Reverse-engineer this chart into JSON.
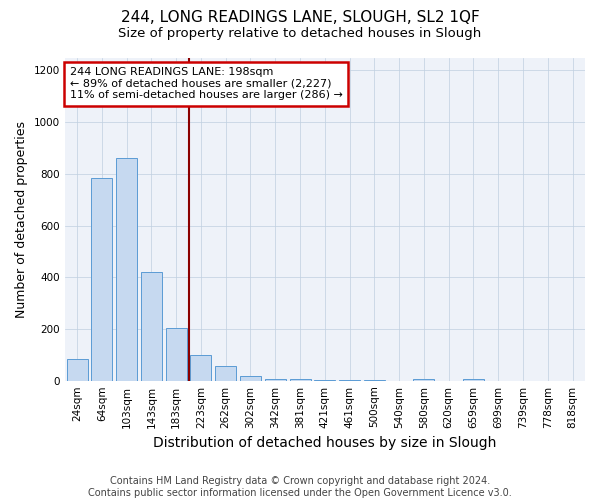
{
  "title": "244, LONG READINGS LANE, SLOUGH, SL2 1QF",
  "subtitle": "Size of property relative to detached houses in Slough",
  "xlabel": "Distribution of detached houses by size in Slough",
  "ylabel": "Number of detached properties",
  "categories": [
    "24sqm",
    "64sqm",
    "103sqm",
    "143sqm",
    "183sqm",
    "223sqm",
    "262sqm",
    "302sqm",
    "342sqm",
    "381sqm",
    "421sqm",
    "461sqm",
    "500sqm",
    "540sqm",
    "580sqm",
    "620sqm",
    "659sqm",
    "699sqm",
    "739sqm",
    "778sqm",
    "818sqm"
  ],
  "values": [
    85,
    785,
    860,
    420,
    205,
    100,
    55,
    20,
    8,
    5,
    3,
    2,
    1,
    0,
    8,
    0,
    8,
    0,
    0,
    0,
    0
  ],
  "bar_color": "#c6d9f0",
  "bar_edge_color": "#5b9bd5",
  "red_line_x": 4,
  "annotation_line1": "244 LONG READINGS LANE: 198sqm",
  "annotation_line2": "← 89% of detached houses are smaller (2,227)",
  "annotation_line3": "11% of semi-detached houses are larger (286) →",
  "annotation_box_color": "#ffffff",
  "annotation_box_edge": "#cc0000",
  "ylim": [
    0,
    1250
  ],
  "yticks": [
    0,
    200,
    400,
    600,
    800,
    1000,
    1200
  ],
  "footer": "Contains HM Land Registry data © Crown copyright and database right 2024.\nContains public sector information licensed under the Open Government Licence v3.0.",
  "title_fontsize": 11,
  "subtitle_fontsize": 9.5,
  "xlabel_fontsize": 10,
  "ylabel_fontsize": 9,
  "tick_fontsize": 7.5,
  "footer_fontsize": 7
}
